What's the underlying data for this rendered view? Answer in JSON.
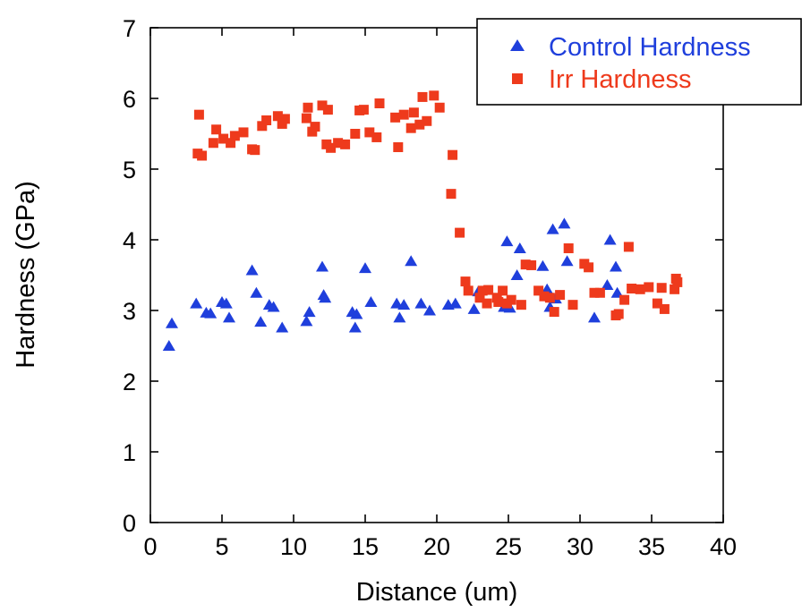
{
  "chart_data": {
    "type": "scatter",
    "title": "",
    "xlabel": "Distance (um)",
    "ylabel": "Hardness (GPa)",
    "xlim": [
      0,
      40
    ],
    "ylim": [
      0,
      7
    ],
    "xticks": [
      "0",
      "5",
      "10",
      "15",
      "20",
      "25",
      "30",
      "35",
      "40"
    ],
    "yticks": [
      "0",
      "1",
      "2",
      "3",
      "4",
      "5",
      "6",
      "7"
    ],
    "grid": false,
    "legend_position": "top-right",
    "series": [
      {
        "name": "Control Hardness",
        "marker": "triangle",
        "color": "#1f3fdc",
        "points": [
          [
            1.3,
            2.5
          ],
          [
            1.5,
            2.82
          ],
          [
            3.2,
            3.1
          ],
          [
            3.9,
            2.97
          ],
          [
            4.2,
            2.96
          ],
          [
            5.0,
            3.12
          ],
          [
            5.3,
            3.1
          ],
          [
            5.5,
            2.9
          ],
          [
            7.1,
            3.57
          ],
          [
            7.4,
            3.25
          ],
          [
            7.7,
            2.84
          ],
          [
            8.3,
            3.08
          ],
          [
            8.6,
            3.05
          ],
          [
            9.2,
            2.76
          ],
          [
            10.9,
            2.85
          ],
          [
            11.1,
            2.98
          ],
          [
            12.0,
            3.62
          ],
          [
            12.1,
            3.22
          ],
          [
            12.2,
            3.18
          ],
          [
            14.1,
            2.98
          ],
          [
            14.3,
            2.76
          ],
          [
            14.4,
            2.95
          ],
          [
            15.0,
            3.6
          ],
          [
            15.4,
            3.12
          ],
          [
            17.2,
            3.1
          ],
          [
            17.4,
            2.9
          ],
          [
            17.7,
            3.08
          ],
          [
            18.2,
            3.7
          ],
          [
            18.9,
            3.1
          ],
          [
            19.5,
            3.0
          ],
          [
            20.8,
            3.08
          ],
          [
            21.3,
            3.1
          ],
          [
            22.6,
            3.02
          ],
          [
            22.9,
            3.27
          ],
          [
            24.7,
            3.05
          ],
          [
            24.9,
            3.98
          ],
          [
            25.1,
            3.04
          ],
          [
            25.6,
            3.5
          ],
          [
            25.8,
            3.88
          ],
          [
            27.4,
            3.63
          ],
          [
            27.7,
            3.3
          ],
          [
            27.9,
            3.05
          ],
          [
            28.1,
            4.15
          ],
          [
            28.3,
            3.17
          ],
          [
            28.9,
            4.23
          ],
          [
            29.1,
            3.7
          ],
          [
            31.0,
            2.9
          ],
          [
            31.9,
            3.36
          ],
          [
            32.1,
            4.0
          ],
          [
            32.5,
            3.62
          ],
          [
            32.6,
            3.25
          ]
        ]
      },
      {
        "name": "Irr Hardness",
        "marker": "square",
        "color": "#ee3a1c",
        "points": [
          [
            3.3,
            5.22
          ],
          [
            3.4,
            5.77
          ],
          [
            3.6,
            5.19
          ],
          [
            4.4,
            5.37
          ],
          [
            4.6,
            5.56
          ],
          [
            5.1,
            5.43
          ],
          [
            5.6,
            5.37
          ],
          [
            5.9,
            5.47
          ],
          [
            6.5,
            5.52
          ],
          [
            7.1,
            5.28
          ],
          [
            7.3,
            5.27
          ],
          [
            7.8,
            5.61
          ],
          [
            8.1,
            5.69
          ],
          [
            8.9,
            5.75
          ],
          [
            9.2,
            5.64
          ],
          [
            9.4,
            5.71
          ],
          [
            10.9,
            5.72
          ],
          [
            11.0,
            5.87
          ],
          [
            11.3,
            5.53
          ],
          [
            11.5,
            5.6
          ],
          [
            12.0,
            5.9
          ],
          [
            12.3,
            5.35
          ],
          [
            12.4,
            5.84
          ],
          [
            12.6,
            5.3
          ],
          [
            13.1,
            5.37
          ],
          [
            13.6,
            5.35
          ],
          [
            14.3,
            5.5
          ],
          [
            14.6,
            5.83
          ],
          [
            14.9,
            5.84
          ],
          [
            15.3,
            5.52
          ],
          [
            15.8,
            5.45
          ],
          [
            16.0,
            5.93
          ],
          [
            17.1,
            5.73
          ],
          [
            17.3,
            5.31
          ],
          [
            17.7,
            5.77
          ],
          [
            18.2,
            5.58
          ],
          [
            18.4,
            5.8
          ],
          [
            18.8,
            5.63
          ],
          [
            19.0,
            6.02
          ],
          [
            19.3,
            5.68
          ],
          [
            19.8,
            6.04
          ],
          [
            20.2,
            5.87
          ],
          [
            21.0,
            4.65
          ],
          [
            21.1,
            5.2
          ],
          [
            21.6,
            4.1
          ],
          [
            22.0,
            3.41
          ],
          [
            22.2,
            3.28
          ],
          [
            23.0,
            3.18
          ],
          [
            23.2,
            3.28
          ],
          [
            23.5,
            3.1
          ],
          [
            23.6,
            3.29
          ],
          [
            24.2,
            3.18
          ],
          [
            24.3,
            3.12
          ],
          [
            24.6,
            3.28
          ],
          [
            24.9,
            3.1
          ],
          [
            25.2,
            3.15
          ],
          [
            25.9,
            3.08
          ],
          [
            26.2,
            3.65
          ],
          [
            26.6,
            3.64
          ],
          [
            27.1,
            3.28
          ],
          [
            27.5,
            3.2
          ],
          [
            27.9,
            3.18
          ],
          [
            28.2,
            2.98
          ],
          [
            28.6,
            3.22
          ],
          [
            29.2,
            3.88
          ],
          [
            29.5,
            3.08
          ],
          [
            30.3,
            3.66
          ],
          [
            30.6,
            3.61
          ],
          [
            31.0,
            3.25
          ],
          [
            31.4,
            3.25
          ],
          [
            32.5,
            2.93
          ],
          [
            32.7,
            2.95
          ],
          [
            33.1,
            3.15
          ],
          [
            33.4,
            3.9
          ],
          [
            33.6,
            3.31
          ],
          [
            34.2,
            3.3
          ],
          [
            34.8,
            3.33
          ],
          [
            35.4,
            3.1
          ],
          [
            35.7,
            3.32
          ],
          [
            35.9,
            3.02
          ],
          [
            36.6,
            3.3
          ],
          [
            36.7,
            3.45
          ],
          [
            36.8,
            3.4
          ]
        ]
      }
    ]
  }
}
